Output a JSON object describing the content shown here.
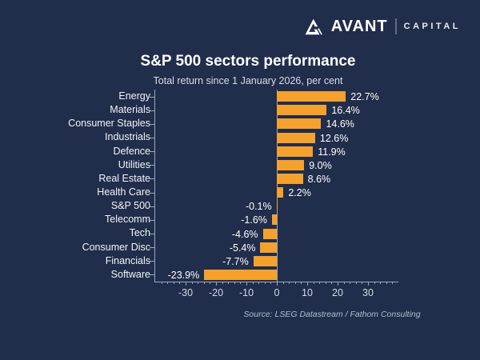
{
  "logo": {
    "brand": "AVANT",
    "division": "CAPITAL"
  },
  "chart": {
    "title": "S&P 500 sectors performance",
    "subtitle": "Total return since 1 January 2026, per cent",
    "source": "Source: LSEG Datastream / Fathom Consulting"
  },
  "chart_data": {
    "type": "bar",
    "orientation": "horizontal",
    "title": "S&P 500 sectors performance",
    "subtitle": "Total return since 1 January 2026, per cent",
    "categories": [
      "Energy",
      "Materials",
      "Consumer Staples",
      "Industrials",
      "Defence",
      "Utilities",
      "Real Estate",
      "Health Care",
      "S&P 500",
      "Telecomm",
      "Tech",
      "Consumer Disc",
      "Financials",
      "Software"
    ],
    "values": [
      22.7,
      16.4,
      14.6,
      12.6,
      11.9,
      9.0,
      8.6,
      2.2,
      -0.1,
      -1.6,
      -4.6,
      -5.4,
      -7.7,
      -23.9
    ],
    "value_labels": [
      "22.7%",
      "16.4%",
      "14.6%",
      "12.6%",
      "11.9%",
      "9.0%",
      "8.6%",
      "2.2%",
      "-0.1%",
      "-1.6%",
      "-4.6%",
      "-5.4%",
      "-7.7%",
      "-23.9%"
    ],
    "xlabel": "",
    "ylabel": "",
    "x_ticks": [
      -30,
      -20,
      -10,
      0,
      10,
      20,
      30
    ],
    "x_tick_labels": [
      "-30",
      "-20",
      "-10",
      "0",
      "10",
      "20",
      "30"
    ],
    "xlim": [
      -40,
      40
    ],
    "minor_tick_step": 2,
    "grid": false,
    "legend": null,
    "bar_color": "#f5a12d",
    "background_color": "#202d4b",
    "axis_color": "#9aa8bc",
    "text_color": "#ffffff"
  }
}
